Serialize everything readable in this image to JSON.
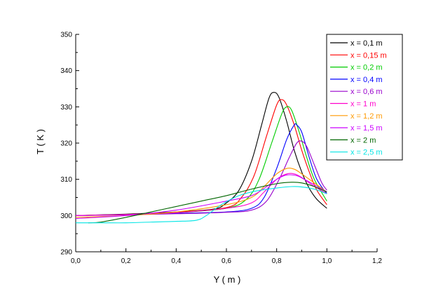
{
  "chart_data": {
    "type": "line",
    "title": "",
    "xlabel": "Y ( m )",
    "ylabel": "T ( K )",
    "xlim": [
      0.0,
      1.2
    ],
    "ylim": [
      290,
      350
    ],
    "x_ticks": [
      "0,0",
      "0,2",
      "0,4",
      "0,6",
      "0,8",
      "1,0",
      "1,2"
    ],
    "y_ticks": [
      "290",
      "300",
      "310",
      "320",
      "330",
      "340",
      "350"
    ],
    "grid": false,
    "legend_position": "top-right",
    "series": [
      {
        "name": "x = 0,1 m",
        "color": "#000000",
        "x": [
          0,
          0.2,
          0.4,
          0.55,
          0.6,
          0.65,
          0.7,
          0.74,
          0.77,
          0.79,
          0.81,
          0.84,
          0.87,
          0.9,
          0.93,
          0.96,
          1.0
        ],
        "y": [
          300,
          300.4,
          301,
          301.8,
          303.5,
          307,
          315,
          325,
          332.5,
          334,
          332.5,
          326,
          318,
          312,
          307.5,
          304.5,
          302
        ]
      },
      {
        "name": "x = 0,15 m",
        "color": "#ff0000",
        "x": [
          0,
          0.2,
          0.4,
          0.6,
          0.66,
          0.71,
          0.76,
          0.8,
          0.82,
          0.84,
          0.87,
          0.9,
          0.93,
          0.96,
          1.0
        ],
        "y": [
          300,
          300.3,
          300.9,
          302.2,
          305,
          311,
          322,
          330.5,
          332,
          330.5,
          325,
          318,
          312,
          307,
          303
        ]
      },
      {
        "name": "x = 0,2 m",
        "color": "#00cc00",
        "x": [
          0,
          0.2,
          0.4,
          0.6,
          0.68,
          0.73,
          0.78,
          0.82,
          0.84,
          0.86,
          0.89,
          0.92,
          0.95,
          1.0
        ],
        "y": [
          300,
          300.3,
          300.8,
          302,
          304.5,
          310,
          320,
          328,
          330,
          329,
          323,
          316,
          310,
          304
        ]
      },
      {
        "name": "x = 0,4 m",
        "color": "#0000ff",
        "x": [
          0,
          0.2,
          0.4,
          0.6,
          0.7,
          0.75,
          0.8,
          0.84,
          0.87,
          0.88,
          0.9,
          0.93,
          0.96,
          1.0
        ],
        "y": [
          300,
          300.2,
          300.6,
          301,
          302,
          305,
          313,
          321,
          325,
          325,
          323,
          316,
          310,
          306
        ]
      },
      {
        "name": "x = 0,6 m",
        "color": "#9900cc",
        "x": [
          0,
          0.2,
          0.4,
          0.6,
          0.7,
          0.76,
          0.81,
          0.85,
          0.88,
          0.9,
          0.92,
          0.95,
          0.98,
          1.0
        ],
        "y": [
          300,
          300.2,
          300.5,
          300.9,
          301.5,
          304,
          310,
          316,
          320,
          320.5,
          319,
          314,
          309,
          307
        ]
      },
      {
        "name": "x = 1 m",
        "color": "#ff00cc",
        "x": [
          0,
          0.2,
          0.4,
          0.6,
          0.7,
          0.75,
          0.8,
          0.84,
          0.87,
          0.9,
          0.94,
          1.0
        ],
        "y": [
          300,
          300.3,
          300.8,
          302,
          303.5,
          306.5,
          310,
          311.5,
          311.5,
          310.5,
          308.5,
          306
        ]
      },
      {
        "name": "x = 1,2 m",
        "color": "#ff9900",
        "x": [
          0,
          0.2,
          0.4,
          0.6,
          0.7,
          0.75,
          0.8,
          0.84,
          0.87,
          0.9,
          0.94,
          1.0
        ],
        "y": [
          299.5,
          300,
          301,
          303,
          305,
          308,
          311.5,
          313,
          312.8,
          311.5,
          309.5,
          306.5
        ]
      },
      {
        "name": "x = 1,5 m",
        "color": "#cc00ff",
        "x": [
          0,
          0.2,
          0.4,
          0.6,
          0.7,
          0.75,
          0.8,
          0.84,
          0.88,
          0.91,
          0.95,
          1.0
        ],
        "y": [
          299.2,
          300,
          301.5,
          304,
          305.5,
          307.5,
          310,
          311.2,
          311,
          310,
          308.5,
          306.5
        ]
      },
      {
        "name": "x = 2 m",
        "color": "#006600",
        "x": [
          0.05,
          0.1,
          0.2,
          0.3,
          0.4,
          0.5,
          0.6,
          0.7,
          0.8,
          0.86,
          0.9,
          0.95,
          1.0
        ],
        "y": [
          298,
          298.2,
          299.5,
          301,
          302.5,
          304,
          305.5,
          307.3,
          308.8,
          309.2,
          309,
          308,
          306.5
        ]
      },
      {
        "name": "x = 2,5 m",
        "color": "#00e5e5",
        "x": [
          0,
          0.1,
          0.2,
          0.3,
          0.4,
          0.48,
          0.52,
          0.58,
          0.65,
          0.72,
          0.8,
          0.86,
          0.9,
          0.95,
          1.0
        ],
        "y": [
          298,
          298,
          298,
          298.2,
          298.4,
          298.7,
          300,
          303,
          305.5,
          306.8,
          307.6,
          308,
          307.9,
          307.3,
          306
        ]
      }
    ]
  }
}
